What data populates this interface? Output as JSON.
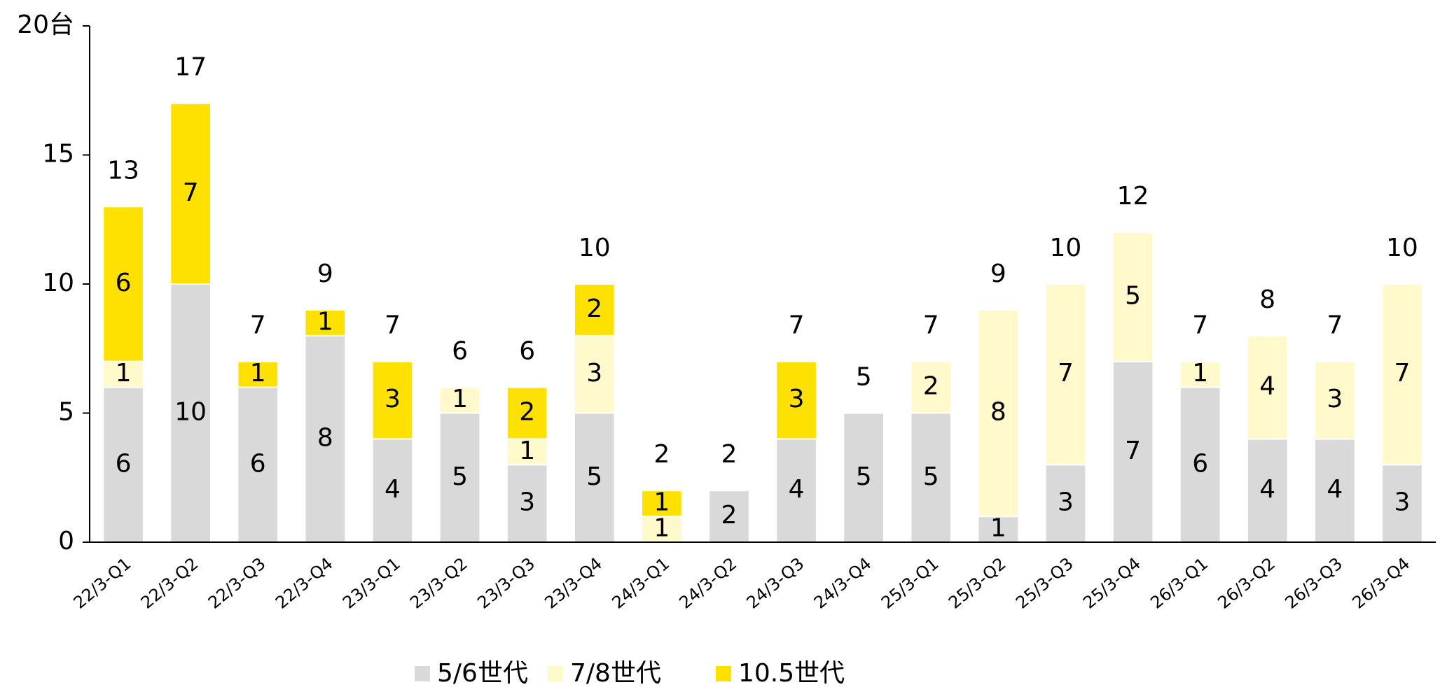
{
  "chart_data": {
    "type": "stacked_bar",
    "categories": [
      "22/3-Q1",
      "22/3-Q2",
      "22/3-Q3",
      "22/3-Q4",
      "23/3-Q1",
      "23/3-Q2",
      "23/3-Q3",
      "23/3-Q4",
      "24/3-Q1",
      "24/3-Q2",
      "24/3-Q3",
      "24/3-Q4",
      "25/3-Q1",
      "25/3-Q2",
      "25/3-Q3",
      "25/3-Q4",
      "26/3-Q1",
      "26/3-Q2",
      "26/3-Q3",
      "26/3-Q4"
    ],
    "series": [
      {
        "name": "5/6世代",
        "color": "#d9d9d9",
        "values": [
          6,
          10,
          6,
          8,
          4,
          5,
          3,
          5,
          0,
          2,
          4,
          5,
          5,
          1,
          3,
          7,
          6,
          4,
          4,
          3
        ]
      },
      {
        "name": "7/8世代",
        "color": "#fff9cc",
        "values": [
          1,
          0,
          0,
          0,
          0,
          1,
          1,
          3,
          1,
          0,
          0,
          0,
          2,
          8,
          7,
          5,
          1,
          4,
          3,
          7
        ]
      },
      {
        "name": "10.5世代",
        "color": "#ffe100",
        "values": [
          6,
          7,
          1,
          1,
          3,
          0,
          2,
          2,
          1,
          0,
          3,
          0,
          0,
          0,
          0,
          0,
          0,
          0,
          0,
          0
        ]
      }
    ],
    "totals": [
      13,
      17,
      7,
      9,
      7,
      6,
      6,
      10,
      2,
      2,
      7,
      5,
      7,
      9,
      10,
      12,
      7,
      8,
      7,
      10
    ],
    "ylim": [
      0,
      20
    ],
    "yticks": [
      0,
      5,
      10,
      15,
      {
        "value": 20,
        "label": "20台"
      }
    ],
    "legend": "bottom"
  }
}
